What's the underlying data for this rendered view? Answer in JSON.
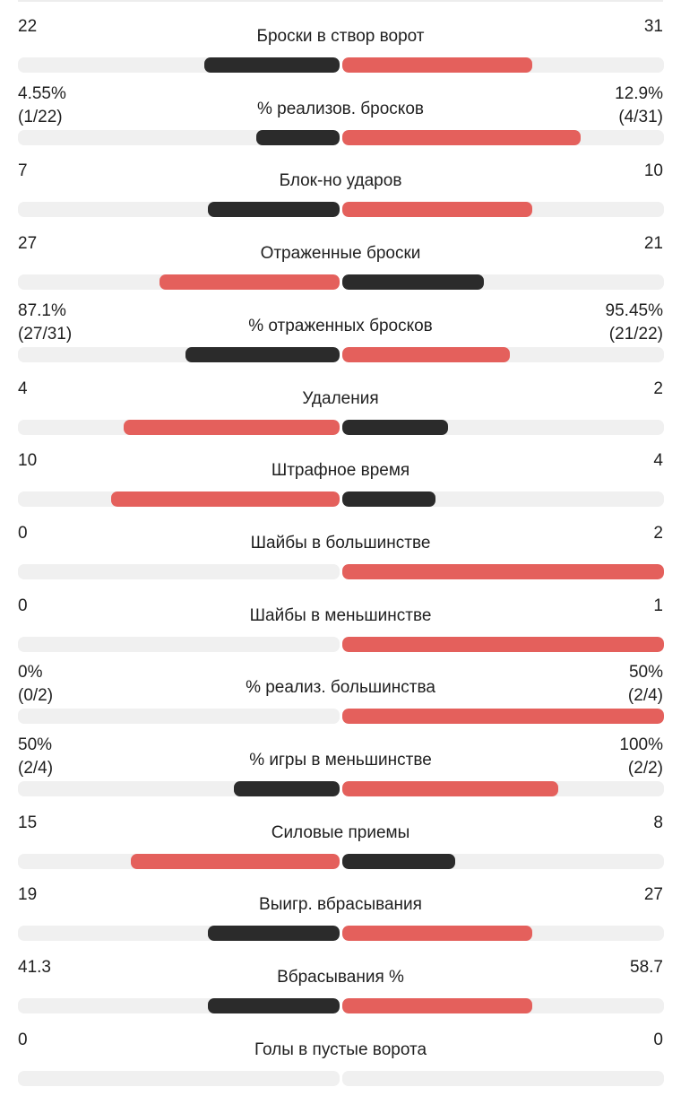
{
  "colors": {
    "dark": "#2b2b2b",
    "red": "#e4605c",
    "track": "#f0f0f0",
    "text": "#1f1f1f"
  },
  "stats": [
    {
      "label": "Броски в створ ворот",
      "left": [
        "22"
      ],
      "right": [
        "31"
      ],
      "left_bar": 0.42,
      "right_bar": 0.59,
      "left_color": "dark",
      "right_color": "red"
    },
    {
      "label": "% реализов. бросков",
      "left": [
        "4.55%",
        "(1/22)"
      ],
      "right": [
        "12.9%",
        "(4/31)"
      ],
      "left_bar": 0.26,
      "right_bar": 0.74,
      "left_color": "dark",
      "right_color": "red"
    },
    {
      "label": "Блок-но ударов",
      "left": [
        "7"
      ],
      "right": [
        "10"
      ],
      "left_bar": 0.41,
      "right_bar": 0.59,
      "left_color": "dark",
      "right_color": "red"
    },
    {
      "label": "Отраженные броски",
      "left": [
        "27"
      ],
      "right": [
        "21"
      ],
      "left_bar": 0.56,
      "right_bar": 0.44,
      "left_color": "red",
      "right_color": "dark"
    },
    {
      "label": "% отраженных бросков",
      "left": [
        "87.1%",
        "(27/31)"
      ],
      "right": [
        "95.45%",
        "(21/22)"
      ],
      "left_bar": 0.48,
      "right_bar": 0.52,
      "left_color": "dark",
      "right_color": "red"
    },
    {
      "label": "Удаления",
      "left": [
        "4"
      ],
      "right": [
        "2"
      ],
      "left_bar": 0.67,
      "right_bar": 0.33,
      "left_color": "red",
      "right_color": "dark"
    },
    {
      "label": "Штрафное время",
      "left": [
        "10"
      ],
      "right": [
        "4"
      ],
      "left_bar": 0.71,
      "right_bar": 0.29,
      "left_color": "red",
      "right_color": "dark"
    },
    {
      "label": "Шайбы в большинстве",
      "left": [
        "0"
      ],
      "right": [
        "2"
      ],
      "left_bar": 0,
      "right_bar": 1,
      "left_color": "dark",
      "right_color": "red"
    },
    {
      "label": "Шайбы в меньшинстве",
      "left": [
        "0"
      ],
      "right": [
        "1"
      ],
      "left_bar": 0,
      "right_bar": 1,
      "left_color": "dark",
      "right_color": "red"
    },
    {
      "label": "% реализ. большинства",
      "left": [
        "0%",
        "(0/2)"
      ],
      "right": [
        "50%",
        "(2/4)"
      ],
      "left_bar": 0,
      "right_bar": 1,
      "left_color": "dark",
      "right_color": "red"
    },
    {
      "label": "% игры в меньшинстве",
      "left": [
        "50%",
        "(2/4)"
      ],
      "right": [
        "100%",
        "(2/2)"
      ],
      "left_bar": 0.33,
      "right_bar": 0.67,
      "left_color": "dark",
      "right_color": "red"
    },
    {
      "label": "Силовые приемы",
      "left": [
        "15"
      ],
      "right": [
        "8"
      ],
      "left_bar": 0.65,
      "right_bar": 0.35,
      "left_color": "red",
      "right_color": "dark"
    },
    {
      "label": "Выигр. вбрасывания",
      "left": [
        "19"
      ],
      "right": [
        "27"
      ],
      "left_bar": 0.41,
      "right_bar": 0.59,
      "left_color": "dark",
      "right_color": "red"
    },
    {
      "label": "Вбрасывания %",
      "left": [
        "41.3"
      ],
      "right": [
        "58.7"
      ],
      "left_bar": 0.41,
      "right_bar": 0.59,
      "left_color": "dark",
      "right_color": "red"
    },
    {
      "label": "Голы в пустые ворота",
      "left": [
        "0"
      ],
      "right": [
        "0"
      ],
      "left_bar": 0,
      "right_bar": 0,
      "left_color": "dark",
      "right_color": "red"
    }
  ]
}
